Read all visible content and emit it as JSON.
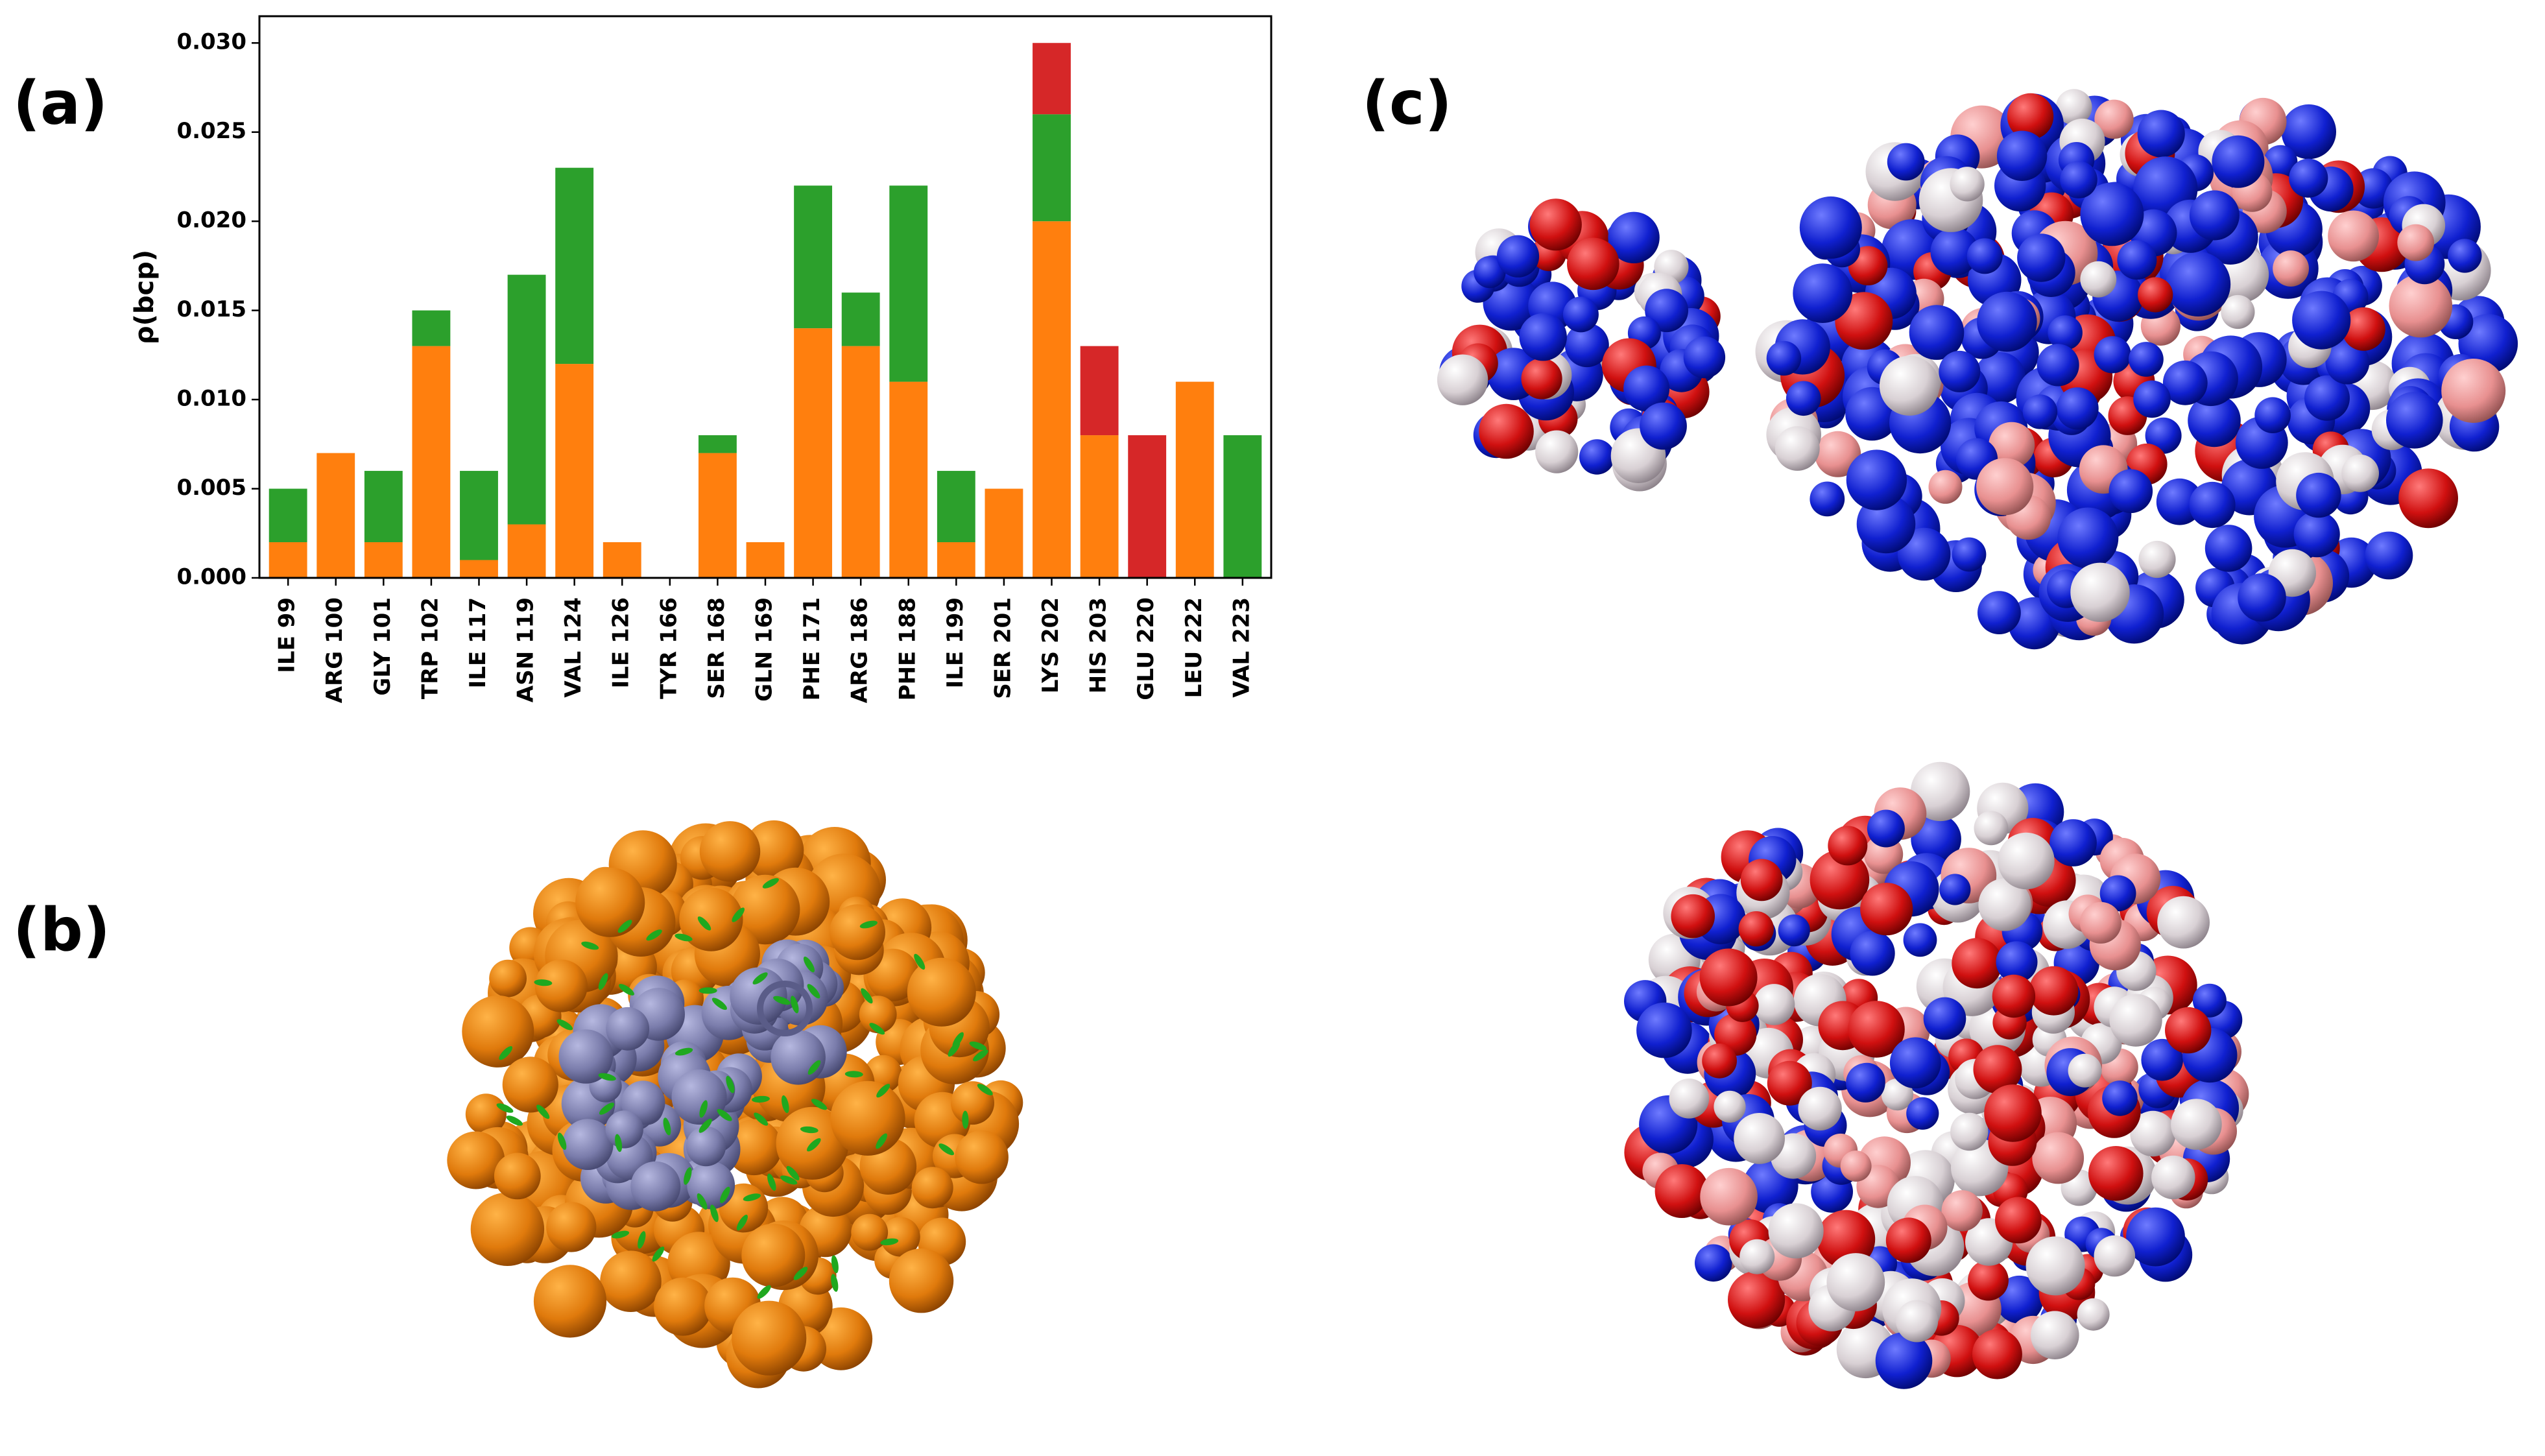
{
  "chart_data": {
    "type": "bar",
    "stacked": true,
    "ylabel": "ρ(bcp)",
    "categories": [
      "ILE 99",
      "ARG 100",
      "GLY 101",
      "TRP 102",
      "ILE 117",
      "ASN 119",
      "VAL 124",
      "ILE 126",
      "TYR 166",
      "SER 168",
      "GLN 169",
      "PHE 171",
      "ARG 186",
      "PHE 188",
      "ILE 199",
      "SER 201",
      "LYS 202",
      "HIS 203",
      "GLU 220",
      "LEU 222",
      "VAL 223"
    ],
    "series": [
      {
        "color": "#ff7f0e",
        "values": [
          0.002,
          0.007,
          0.002,
          0.013,
          0.001,
          0.003,
          0.012,
          0.002,
          0,
          0.007,
          0.002,
          0.014,
          0.013,
          0.011,
          0.002,
          0.005,
          0.02,
          0.008,
          0,
          0.011,
          0
        ]
      },
      {
        "color": "#2ca02c",
        "values": [
          0.003,
          0,
          0.004,
          0.002,
          0.005,
          0.014,
          0.011,
          0,
          0,
          0.001,
          0,
          0.008,
          0.003,
          0.011,
          0.004,
          0,
          0.006,
          0,
          0,
          0,
          0.008
        ]
      },
      {
        "color": "#d62728",
        "values": [
          0,
          0,
          0,
          0,
          0,
          0,
          0,
          0,
          0,
          0,
          0,
          0,
          0,
          0,
          0,
          0,
          0.004,
          0.005,
          0.008,
          0,
          0
        ]
      }
    ],
    "ylim": [
      0,
      0.0315
    ],
    "yticks": [
      {
        "value": 0,
        "label": "0.000"
      },
      {
        "value": 0.005,
        "label": "0.005"
      },
      {
        "value": 0.01,
        "label": "0.010"
      },
      {
        "value": 0.015,
        "label": "0.015"
      },
      {
        "value": 0.02,
        "label": "0.020"
      },
      {
        "value": 0.025,
        "label": "0.025"
      },
      {
        "value": 0.03,
        "label": "0.030"
      }
    ]
  },
  "panels": [
    "(a)",
    "(b)",
    "(c)"
  ]
}
